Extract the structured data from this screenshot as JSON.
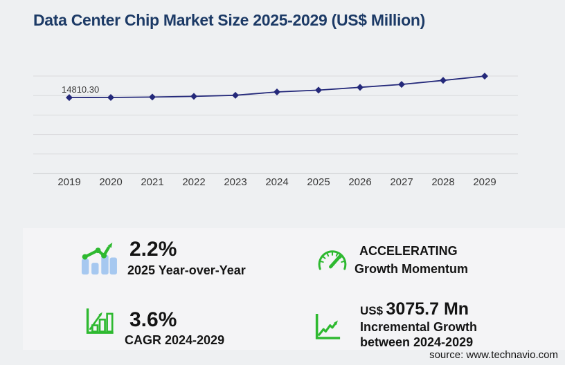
{
  "title": "Data Center Chip Market Size 2025-2029 (US$ Million)",
  "source_note": "source: www.technavio.com",
  "colors": {
    "page_bg": "#eef0f2",
    "panel_bg": "#f4f4f6",
    "title": "#1c3a66",
    "line": "#24297a",
    "grid": "#d9dadc",
    "axis": "#c6c8ca",
    "tick_label": "#3a3a3a",
    "green": "#2eb930",
    "bar_blue": "#a6c8f0",
    "text": "#141414"
  },
  "chart_data": {
    "type": "line",
    "title": "Data Center Chip Market Size 2025-2029 (US$ Million)",
    "x": [
      "2019",
      "2020",
      "2021",
      "2022",
      "2023",
      "2024",
      "2025",
      "2026",
      "2027",
      "2028",
      "2029"
    ],
    "values": [
      14810.3,
      14822,
      14905,
      15040,
      15250,
      15902,
      16251.8,
      16800,
      17370,
      18150,
      18977.7
    ],
    "data_labels": {
      "2019": "14810.30"
    },
    "ylim": [
      0,
      19000
    ],
    "gridline_count": 6,
    "grid": "horizontal",
    "legend": "none",
    "marker": "diamond"
  },
  "stats": [
    {
      "icon": "trend-bars-icon",
      "value": "2.2%",
      "label": "2025 Year-over-Year"
    },
    {
      "icon": "gauge-icon",
      "line1": "ACCELERATING",
      "line2": "Growth Momentum"
    },
    {
      "icon": "bar-growth-icon",
      "value": "3.6%",
      "label": "CAGR 2024-2029"
    },
    {
      "icon": "line-growth-icon",
      "currency": "US$",
      "value": "3075.7 Mn",
      "line1": "Incremental Growth",
      "line2": "between 2024-2029"
    }
  ]
}
